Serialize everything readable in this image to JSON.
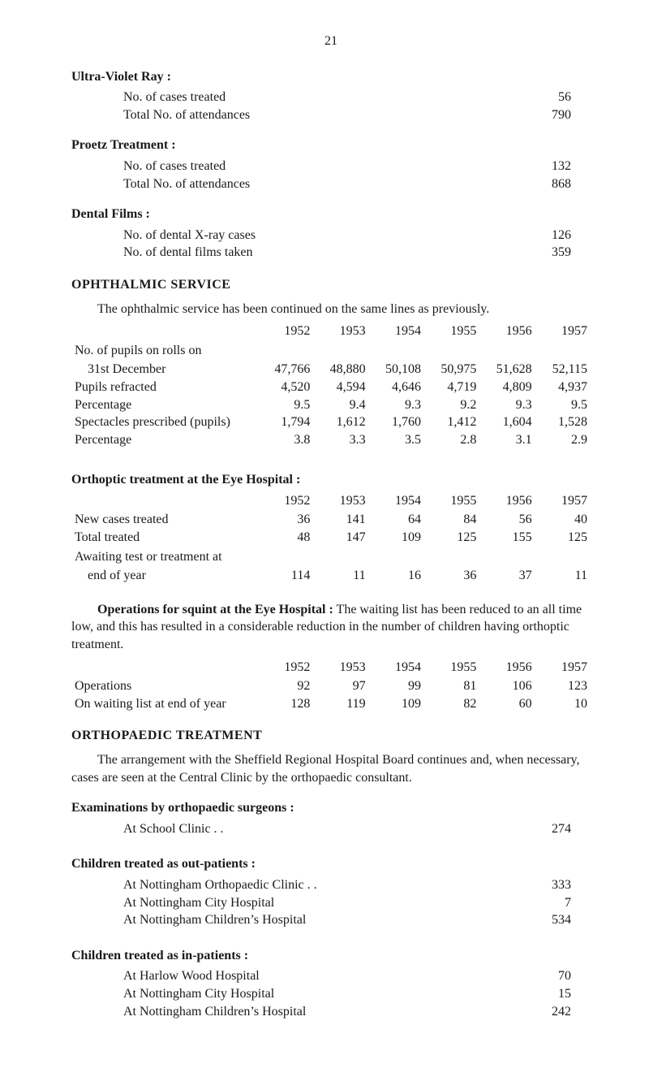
{
  "page_number": "21",
  "uv": {
    "title": "Ultra-Violet Ray :",
    "rows": [
      {
        "label": "No. of cases treated",
        "value": "56"
      },
      {
        "label": "Total No. of attendances",
        "value": "790"
      }
    ]
  },
  "proetz": {
    "title": "Proetz Treatment :",
    "rows": [
      {
        "label": "No. of cases treated",
        "value": "132"
      },
      {
        "label": "Total No. of attendances",
        "value": "868"
      }
    ]
  },
  "dental": {
    "title": "Dental Films :",
    "rows": [
      {
        "label": "No. of dental X-ray cases",
        "value": "126"
      },
      {
        "label": "No. of dental films taken",
        "value": "359"
      }
    ]
  },
  "ophthalmic": {
    "heading": "OPHTHALMIC  SERVICE",
    "para": "The ophthalmic service has been continued on the same lines as pre­viously.",
    "years": [
      "1952",
      "1953",
      "1954",
      "1955",
      "1956",
      "1957"
    ],
    "row_lead": "No. of pupils on rolls on",
    "rows": [
      {
        "label": "31st December",
        "vals": [
          "47,766",
          "48,880",
          "50,108",
          "50,975",
          "51,628",
          "52,115"
        ]
      },
      {
        "label": "Pupils refracted",
        "vals": [
          "4,520",
          "4,594",
          "4,646",
          "4,719",
          "4,809",
          "4,937"
        ]
      },
      {
        "label": "Percentage",
        "vals": [
          "9.5",
          "9.4",
          "9.3",
          "9.2",
          "9.3",
          "9.5"
        ]
      },
      {
        "label": "Spectacles prescribed (pupils)",
        "vals": [
          "1,794",
          "1,612",
          "1,760",
          "1,412",
          "1,604",
          "1,528"
        ]
      },
      {
        "label": "Percentage",
        "vals": [
          "3.8",
          "3.3",
          "3.5",
          "2.8",
          "3.1",
          "2.9"
        ]
      }
    ]
  },
  "orthoptic": {
    "title": "Orthoptic treatment at the Eye Hospital :",
    "years": [
      "1952",
      "1953",
      "1954",
      "1955",
      "1956",
      "1957"
    ],
    "rows": [
      {
        "label": "New cases treated",
        "vals": [
          "36",
          "141",
          "64",
          "84",
          "56",
          "40"
        ]
      },
      {
        "label": "Total treated",
        "vals": [
          "48",
          "147",
          "109",
          "125",
          "155",
          "125"
        ]
      }
    ],
    "await_lead": "Awaiting test or treatment at",
    "await_row": {
      "label": "end of year",
      "vals": [
        "114",
        "11",
        "16",
        "36",
        "37",
        "11"
      ]
    }
  },
  "operations": {
    "para_lead": "Operations for squint at the Eye Hospital :",
    "para_rest": "  The waiting list has been reduced to an all time low, and this has resulted in a considerable reduction in the number of children having orthoptic treatment.",
    "years": [
      "1952",
      "1953",
      "1954",
      "1955",
      "1956",
      "1957"
    ],
    "rows": [
      {
        "label": "Operations",
        "vals": [
          "92",
          "97",
          "99",
          "81",
          "106",
          "123"
        ]
      },
      {
        "label": "On waiting list at end of year",
        "vals": [
          "128",
          "119",
          "109",
          "82",
          "60",
          "10"
        ]
      }
    ]
  },
  "orthopaedic": {
    "heading": "ORTHOPAEDIC  TREATMENT",
    "para": "The arrangement with the Sheffield Regional Hospital Board continues and, when necessary, cases are seen at the Central Clinic by the orthopaedic consultant.",
    "exam_title": "Examinations by orthopaedic surgeons :",
    "exam_rows": [
      {
        "label": "At School Clinic . .",
        "value": "274"
      }
    ],
    "out_title": "Children treated as out-patients :",
    "out_rows": [
      {
        "label": "At Nottingham Orthopaedic Clinic . .",
        "value": "333"
      },
      {
        "label": "At Nottingham City Hospital",
        "value": "7"
      },
      {
        "label": "At Nottingham Children’s Hospital",
        "value": "534"
      }
    ],
    "in_title": "Children treated as in-patients :",
    "in_rows": [
      {
        "label": "At Harlow Wood Hospital",
        "value": "70"
      },
      {
        "label": "At Nottingham City Hospital",
        "value": "15"
      },
      {
        "label": "At Nottingham Children’s Hospital",
        "value": "242"
      }
    ]
  }
}
